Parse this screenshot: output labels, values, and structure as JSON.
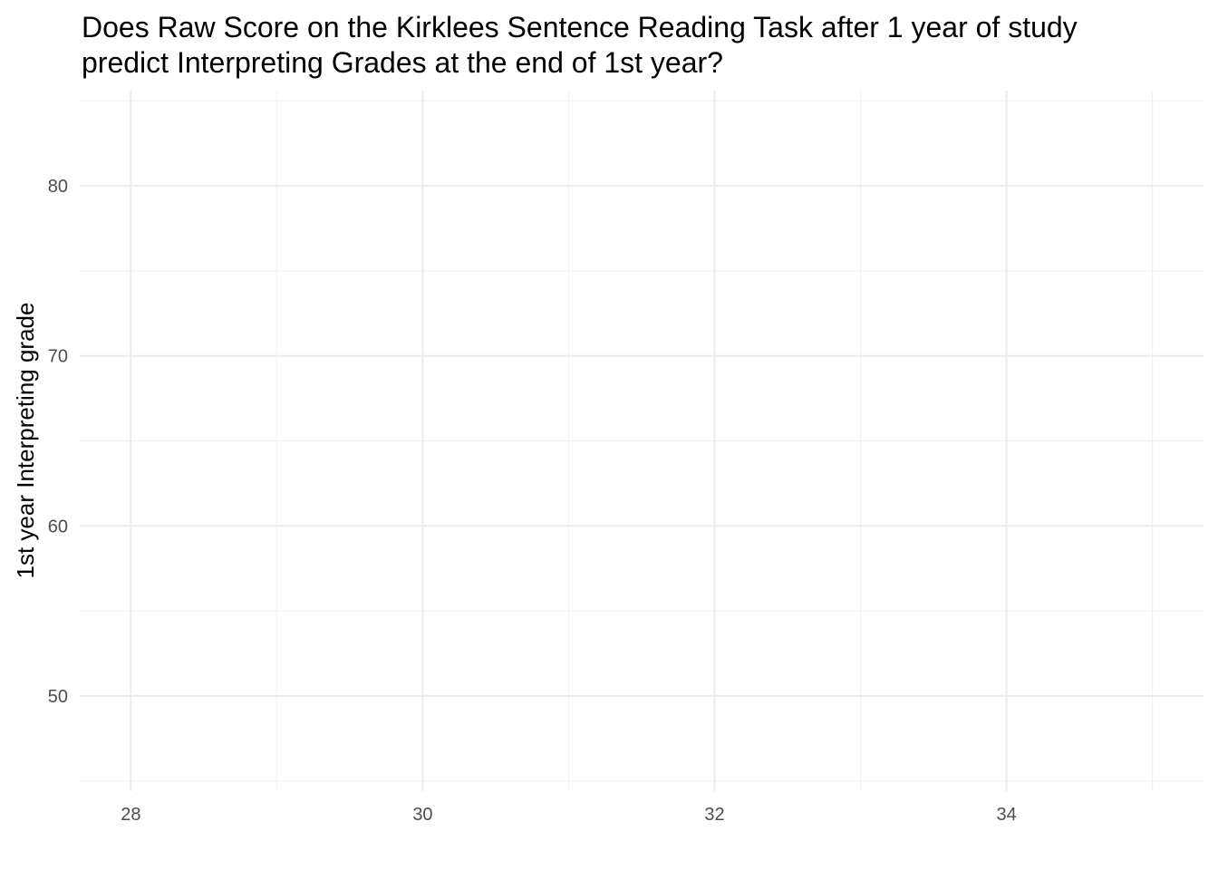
{
  "chart_data": {
    "type": "scatter",
    "title_lines": [
      "Does Raw Score on the Kirklees Sentence Reading Task after 1 year of study",
      "predict Interpreting Grades at the end of 1st year?"
    ],
    "xlabel": "",
    "ylabel": "1st year Interpreting grade",
    "xlim": [
      27.65,
      35.35
    ],
    "ylim": [
      44.4,
      85.6
    ],
    "x_ticks": [
      28,
      30,
      32,
      34
    ],
    "x_minor_ticks": [
      29,
      31,
      33,
      35
    ],
    "y_ticks": [
      50,
      60,
      70,
      80
    ],
    "y_minor_ticks": [
      45,
      55,
      65,
      75,
      85
    ],
    "grid": true,
    "points": []
  }
}
